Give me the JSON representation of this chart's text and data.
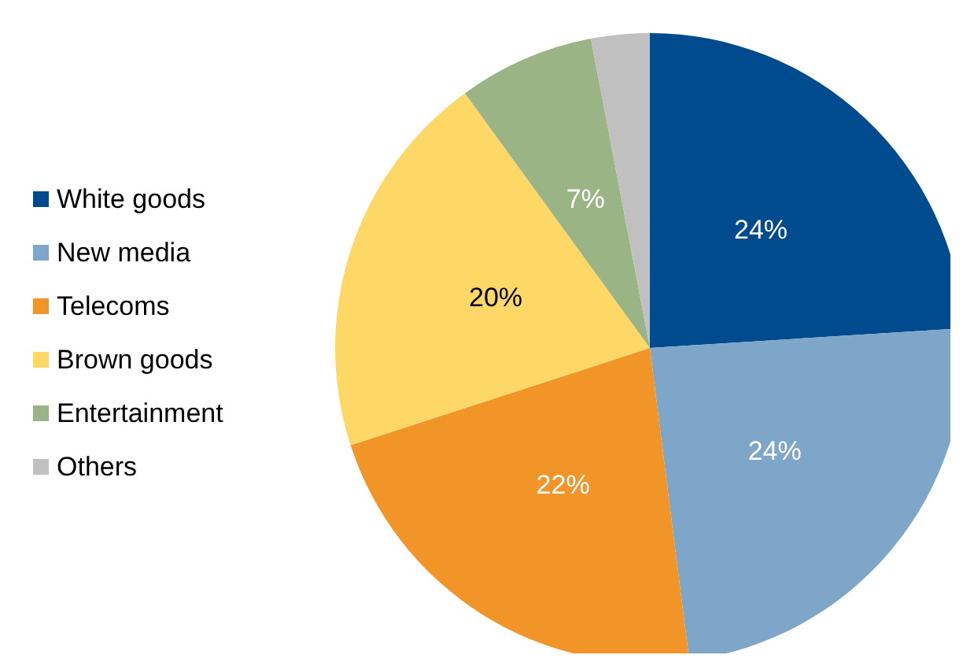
{
  "chart_data": {
    "type": "pie",
    "categories": [
      "White goods",
      "New media",
      "Telecoms",
      "Brown goods",
      "Entertainment",
      "Others"
    ],
    "values": [
      24,
      24,
      22,
      20,
      7,
      3
    ],
    "colors": [
      "#004b8d",
      "#7ea6c8",
      "#f29528",
      "#fdd866",
      "#9bb485",
      "#c0c0c0"
    ],
    "value_labels": [
      "24%",
      "24%",
      "22%",
      "20%",
      "7%",
      null
    ],
    "legend": "left"
  }
}
